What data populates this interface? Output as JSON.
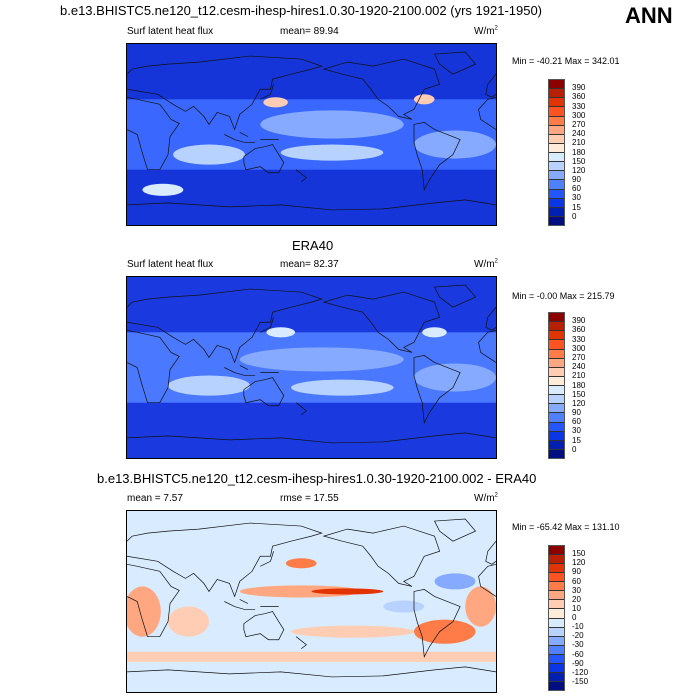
{
  "main_title": "b.e13.BHISTC5.ne120_t12.cesm-ihesp-hires1.0.30-1920-2100.002 (yrs 1921-1950)",
  "season": "ANN",
  "panels": [
    {
      "header": "",
      "left": "Surf latent heat flux",
      "center": "mean=  89.94",
      "units": "W/m",
      "units_sup": "2",
      "minmax": "Min = -40.21 Max = 342.01",
      "colorbar_labels": [
        "390",
        "360",
        "330",
        "300",
        "270",
        "240",
        "210",
        "180",
        "150",
        "120",
        "90",
        "60",
        "30",
        "15",
        "0"
      ]
    },
    {
      "header": "ERA40",
      "left": "Surf latent heat flux",
      "center": "mean=  82.37",
      "units": "W/m",
      "units_sup": "2",
      "minmax": "Min =  -0.00 Max = 215.79",
      "colorbar_labels": [
        "390",
        "360",
        "330",
        "300",
        "270",
        "240",
        "210",
        "180",
        "150",
        "120",
        "90",
        "60",
        "30",
        "15",
        "0"
      ]
    },
    {
      "header": "b.e13.BHISTC5.ne120_t12.cesm-ihesp-hires1.0.30-1920-2100.002 - ERA40",
      "left": "mean =  7.57",
      "center": "rmse =  17.55",
      "units": "W/m",
      "units_sup": "2",
      "minmax": "Min = -65.42 Max = 131.10",
      "colorbar_labels": [
        "150",
        "120",
        "90",
        "60",
        "30",
        "20",
        "10",
        "0",
        "-10",
        "-20",
        "-30",
        "-60",
        "-90",
        "-120",
        "-150"
      ]
    }
  ],
  "colorbar_colors": [
    "#8c0000",
    "#b82000",
    "#e23400",
    "#ff5422",
    "#ff7c48",
    "#ffa781",
    "#ffcdb4",
    "#ffebd9",
    "#d9ecff",
    "#b8d2ff",
    "#85aaff",
    "#4f80ff",
    "#2456ff",
    "#0b36e6",
    "#0020b2",
    "#000e82"
  ]
}
